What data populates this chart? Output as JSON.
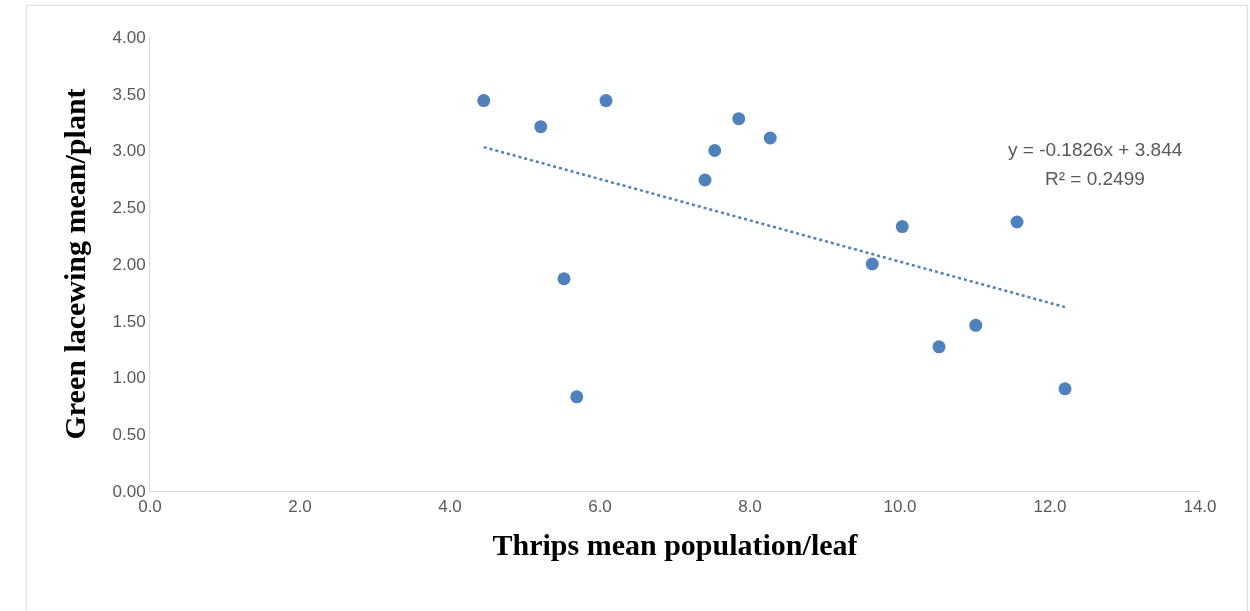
{
  "chart_data": {
    "type": "scatter",
    "xlabel": "Thrips mean population/leaf",
    "ylabel": "Green lacewing mean/plant",
    "annotations": [
      "y = -0.1826x + 3.844",
      "R² = 0.2499"
    ],
    "series": [
      {
        "color": "#4f81bd",
        "marker": "circle",
        "x": [
          4.45,
          5.21,
          6.08,
          5.52,
          5.69,
          7.4,
          7.53,
          7.85,
          8.27,
          9.63,
          10.03,
          10.52,
          11.01,
          11.56,
          12.2
        ],
        "values": [
          3.44,
          3.21,
          3.44,
          1.87,
          0.83,
          2.74,
          3.0,
          3.28,
          3.11,
          2.0,
          2.33,
          1.27,
          1.46,
          2.37,
          0.9
        ]
      },
      {
        "type": "line",
        "color": "#4f81bd",
        "marker": "none",
        "line_style": "dotted",
        "x": [
          4.45,
          12.2
        ],
        "values": [
          3.03,
          1.62
        ]
      }
    ],
    "xlim": [
      0,
      14
    ],
    "ylim": [
      0,
      4
    ],
    "xticks": [
      {
        "value": 0,
        "label": "0.0"
      },
      {
        "value": 2,
        "label": "2.0"
      },
      {
        "value": 4,
        "label": "4.0"
      },
      {
        "value": 6,
        "label": "6.0"
      },
      {
        "value": 8,
        "label": "8.0"
      },
      {
        "value": 10,
        "label": "10.0"
      },
      {
        "value": 12,
        "label": "12.0"
      },
      {
        "value": 14,
        "label": "14.0"
      }
    ],
    "yticks": [
      {
        "value": 0,
        "label": "0.00"
      },
      {
        "value": 0.5,
        "label": "0.50"
      },
      {
        "value": 1,
        "label": "1.00"
      },
      {
        "value": 1.5,
        "label": "1.50"
      },
      {
        "value": 2,
        "label": "2.00"
      },
      {
        "value": 2.5,
        "label": "2.50"
      },
      {
        "value": 3,
        "label": "3.00"
      },
      {
        "value": 3.5,
        "label": "3.50"
      },
      {
        "value": 4,
        "label": "4.00"
      }
    ]
  }
}
